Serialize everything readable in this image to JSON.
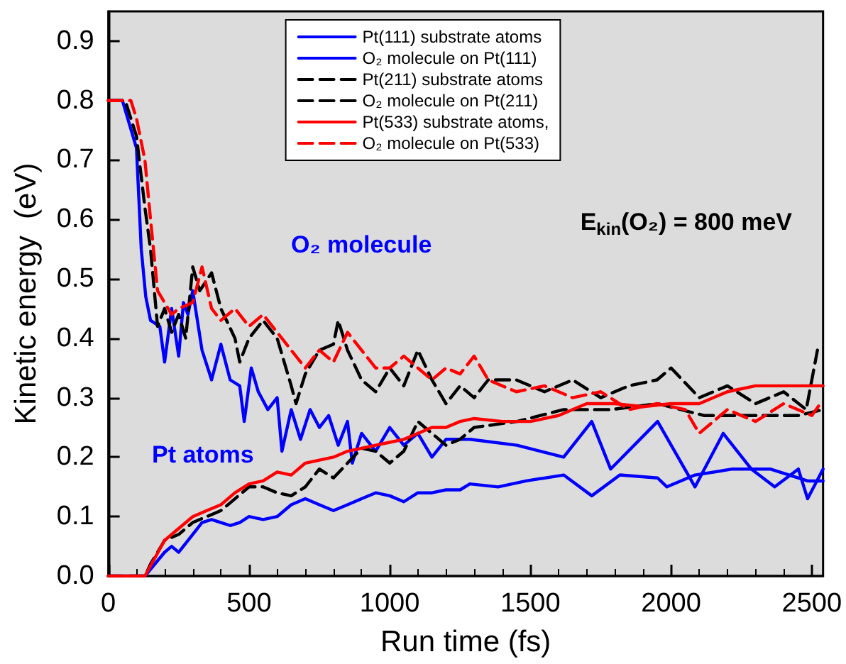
{
  "chart_data": {
    "type": "line",
    "xlabel": "Run time (fs)",
    "ylabel": "Kinetic energy  (eV)",
    "xlim": [
      0,
      2540
    ],
    "xticks": [
      0,
      500,
      1000,
      1500,
      2000,
      2500
    ],
    "ylim": [
      0,
      0.95
    ],
    "yticks": [
      {
        "value": 0,
        "label": "0.0"
      },
      {
        "value": 0.1,
        "label": "0.1"
      },
      {
        "value": 0.2,
        "label": "0.2"
      },
      {
        "value": 0.3,
        "label": "0.3"
      },
      {
        "value": 0.4,
        "label": "0.4"
      },
      {
        "value": 0.5,
        "label": "0.5"
      },
      {
        "value": 0.6,
        "label": "0.6"
      },
      {
        "value": 0.7,
        "label": "0.7"
      },
      {
        "value": 0.8,
        "label": "0.8"
      },
      {
        "value": 0.9,
        "label": "0.9"
      }
    ],
    "grid": false,
    "legend": "top",
    "marker": "none",
    "annotations": [
      "O₂ molecule",
      "Pt atoms",
      "E$_{kin}$(O₂) = 800 meV"
    ],
    "series": [
      {
        "name": "Pt(111) substrate atoms",
        "color": "#0000ff",
        "line_style": "solid",
        "x": [
          0,
          130,
          200,
          225,
          250,
          300,
          333,
          367,
          400,
          433,
          467,
          500,
          550,
          600,
          650,
          700,
          750,
          800,
          850,
          900,
          950,
          1000,
          1050,
          1100,
          1150,
          1200,
          1250,
          1285,
          1385,
          1485,
          1618,
          1718,
          1818,
          1952,
          1985,
          2085,
          2218,
          2352,
          2485,
          2540
        ],
        "values": [
          0,
          0,
          0.04,
          0.05,
          0.04,
          0.07,
          0.09,
          0.095,
          0.09,
          0.085,
          0.09,
          0.1,
          0.095,
          0.1,
          0.12,
          0.13,
          0.12,
          0.11,
          0.12,
          0.13,
          0.14,
          0.135,
          0.125,
          0.14,
          0.14,
          0.145,
          0.145,
          0.155,
          0.15,
          0.16,
          0.17,
          0.135,
          0.17,
          0.165,
          0.15,
          0.17,
          0.18,
          0.18,
          0.16,
          0.16
        ]
      },
      {
        "name": "O₂ molecule on Pt(111)",
        "color": "#0000ff",
        "line_style": "solid",
        "x": [
          0,
          50,
          100,
          117,
          133,
          150,
          183,
          200,
          225,
          250,
          267,
          283,
          300,
          333,
          367,
          400,
          433,
          467,
          483,
          508,
          533,
          567,
          600,
          617,
          650,
          683,
          717,
          750,
          783,
          817,
          850,
          867,
          900,
          950,
          1000,
          1050,
          1100,
          1150,
          1200,
          1285,
          1452,
          1618,
          1718,
          1785,
          1952,
          2085,
          2185,
          2285,
          2368,
          2452,
          2485,
          2540
        ],
        "values": [
          0.8,
          0.8,
          0.72,
          0.55,
          0.47,
          0.43,
          0.42,
          0.36,
          0.45,
          0.37,
          0.46,
          0.44,
          0.48,
          0.38,
          0.33,
          0.39,
          0.33,
          0.32,
          0.26,
          0.35,
          0.31,
          0.28,
          0.3,
          0.21,
          0.28,
          0.23,
          0.28,
          0.25,
          0.27,
          0.22,
          0.26,
          0.19,
          0.24,
          0.21,
          0.25,
          0.22,
          0.24,
          0.2,
          0.23,
          0.23,
          0.22,
          0.2,
          0.26,
          0.18,
          0.26,
          0.15,
          0.24,
          0.18,
          0.15,
          0.18,
          0.13,
          0.18
        ]
      },
      {
        "name": "Pt(211) substrate atoms",
        "color": "#000000",
        "line_style": "dashed",
        "x": [
          0,
          130,
          150,
          200,
          250,
          300,
          350,
          400,
          450,
          500,
          550,
          600,
          650,
          700,
          750,
          800,
          850,
          900,
          950,
          1000,
          1050,
          1100,
          1150,
          1200,
          1250,
          1300,
          1452,
          1618,
          1785,
          1952,
          2118,
          2285,
          2452,
          2540
        ],
        "values": [
          0,
          0,
          0.02,
          0.06,
          0.07,
          0.09,
          0.1,
          0.11,
          0.13,
          0.15,
          0.15,
          0.14,
          0.135,
          0.15,
          0.18,
          0.165,
          0.19,
          0.215,
          0.21,
          0.19,
          0.21,
          0.26,
          0.24,
          0.22,
          0.23,
          0.25,
          0.26,
          0.28,
          0.28,
          0.29,
          0.27,
          0.27,
          0.27,
          0.28
        ]
      },
      {
        "name": "O₂ molecule on Pt(211)",
        "color": "#000000",
        "line_style": "dashed",
        "x": [
          0,
          60,
          100,
          130,
          150,
          175,
          200,
          225,
          250,
          275,
          300,
          325,
          367,
          400,
          450,
          467,
          500,
          550,
          600,
          650,
          667,
          700,
          750,
          800,
          817,
          850,
          900,
          950,
          1000,
          1050,
          1100,
          1150,
          1200,
          1250,
          1300,
          1350,
          1450,
          1550,
          1650,
          1750,
          1850,
          1950,
          2000,
          2100,
          2200,
          2300,
          2400,
          2480,
          2520
        ],
        "values": [
          0.8,
          0.8,
          0.74,
          0.62,
          0.55,
          0.42,
          0.45,
          0.41,
          0.44,
          0.4,
          0.52,
          0.48,
          0.51,
          0.45,
          0.4,
          0.36,
          0.4,
          0.43,
          0.4,
          0.32,
          0.29,
          0.34,
          0.38,
          0.39,
          0.43,
          0.38,
          0.33,
          0.31,
          0.35,
          0.32,
          0.38,
          0.33,
          0.29,
          0.32,
          0.3,
          0.33,
          0.33,
          0.31,
          0.33,
          0.3,
          0.32,
          0.33,
          0.35,
          0.3,
          0.32,
          0.29,
          0.31,
          0.28,
          0.38
        ]
      },
      {
        "name": "Pt(533) substrate atoms,",
        "color": "#ff0000",
        "line_style": "solid",
        "x": [
          0,
          130,
          200,
          250,
          300,
          350,
          400,
          450,
          500,
          550,
          600,
          650,
          700,
          750,
          800,
          850,
          900,
          950,
          1000,
          1050,
          1100,
          1150,
          1200,
          1250,
          1300,
          1400,
          1500,
          1600,
          1700,
          1800,
          1900,
          2000,
          2100,
          2200,
          2300,
          2400,
          2500,
          2540
        ],
        "values": [
          0,
          0,
          0.06,
          0.08,
          0.1,
          0.11,
          0.12,
          0.14,
          0.155,
          0.16,
          0.175,
          0.17,
          0.19,
          0.195,
          0.2,
          0.21,
          0.215,
          0.22,
          0.225,
          0.23,
          0.24,
          0.25,
          0.25,
          0.26,
          0.265,
          0.26,
          0.26,
          0.27,
          0.29,
          0.29,
          0.285,
          0.29,
          0.29,
          0.31,
          0.32,
          0.32,
          0.32,
          0.32
        ]
      },
      {
        "name": "O₂ molecule on Pt(533)",
        "color": "#ff0000",
        "line_style": "dashed",
        "x": [
          0,
          80,
          100,
          130,
          150,
          175,
          200,
          225,
          250,
          300,
          333,
          367,
          400,
          450,
          500,
          550,
          600,
          650,
          700,
          750,
          800,
          850,
          900,
          950,
          1000,
          1050,
          1100,
          1150,
          1200,
          1250,
          1300,
          1350,
          1450,
          1550,
          1650,
          1750,
          1850,
          1950,
          2050,
          2100,
          2200,
          2300,
          2400,
          2500,
          2530
        ],
        "values": [
          0.8,
          0.8,
          0.77,
          0.7,
          0.6,
          0.48,
          0.46,
          0.44,
          0.45,
          0.46,
          0.52,
          0.45,
          0.43,
          0.45,
          0.42,
          0.44,
          0.41,
          0.38,
          0.35,
          0.38,
          0.36,
          0.41,
          0.38,
          0.35,
          0.35,
          0.37,
          0.35,
          0.33,
          0.35,
          0.34,
          0.37,
          0.33,
          0.31,
          0.32,
          0.3,
          0.31,
          0.28,
          0.29,
          0.28,
          0.24,
          0.28,
          0.26,
          0.29,
          0.27,
          0.29
        ]
      }
    ]
  }
}
